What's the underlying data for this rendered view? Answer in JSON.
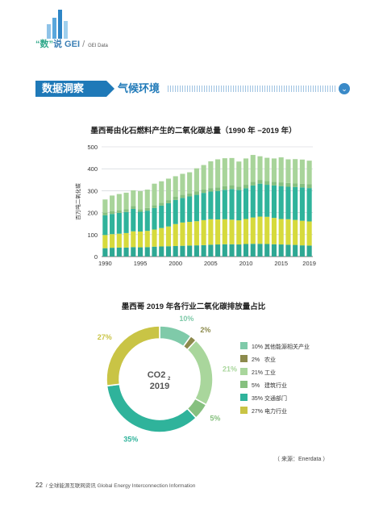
{
  "header": {
    "brand_open_quote": "“",
    "brand_char": "数",
    "brand_close_quote": "”",
    "brand_rest": "说 GEI",
    "brand_sep": "/",
    "brand_sub": "GEI Data"
  },
  "section": {
    "tag": "数据洞察",
    "title": "气候环境"
  },
  "bar_chart_title": "墨西哥由化石燃料产生的二氧化碳总量（1990 年 −2019 年）",
  "donut_chart_title": "墨西哥 2019 年各行业二氧化碳排放量占比",
  "source": "（ 来源：Enerdata ）",
  "footer": {
    "page": "22",
    "sep": "/",
    "text": "全球能源互联网资讯  Global Energy Interconnection Information"
  },
  "colors": {
    "brand_blue": "#1f79b8",
    "green_light": "#a8d49a",
    "teal": "#2fb39b",
    "yellow": "#d5d93a",
    "green_mid": "#86c07f",
    "olive": "#8c8a4c",
    "light_teal": "#7fcaa9",
    "yellow_green": "#c9c445"
  },
  "chart_data": [
    {
      "type": "bar",
      "stacked": true,
      "title": "墨西哥由化石燃料产生的二氧化碳总量（1990 年 −2019 年）",
      "ylabel": "百万吨二氧化碳",
      "xlabel": "",
      "ylim": [
        0,
        500
      ],
      "yticks": [
        "0",
        "100",
        "200",
        "300",
        "400",
        "500"
      ],
      "xtick_labels": [
        "1990",
        "1995",
        "2000",
        "2005",
        "2010",
        "2015",
        "2019"
      ],
      "categories": [
        1990,
        1991,
        1992,
        1993,
        1994,
        1995,
        1996,
        1997,
        1998,
        1999,
        2000,
        2001,
        2002,
        2003,
        2004,
        2005,
        2006,
        2007,
        2008,
        2009,
        2010,
        2011,
        2012,
        2013,
        2014,
        2015,
        2016,
        2017,
        2018,
        2019
      ],
      "grid": true,
      "series": [
        {
          "color": "#2ea894",
          "values": [
            38,
            40,
            41,
            41,
            43,
            42,
            43,
            45,
            46,
            47,
            48,
            49,
            50,
            51,
            52,
            54,
            55,
            56,
            56,
            55,
            57,
            58,
            58,
            57,
            56,
            55,
            54,
            53,
            51,
            50
          ]
        },
        {
          "color": "#d6da3c",
          "values": [
            60,
            62,
            63,
            66,
            72,
            72,
            74,
            78,
            84,
            90,
            100,
            106,
            108,
            110,
            114,
            116,
            114,
            114,
            112,
            110,
            114,
            120,
            124,
            124,
            120,
            116,
            116,
            114,
            112,
            110
          ]
        },
        {
          "color": "#2fb39b",
          "values": [
            90,
            92,
            95,
            96,
            102,
            90,
            92,
            98,
            102,
            106,
            110,
            112,
            116,
            120,
            124,
            126,
            130,
            134,
            140,
            138,
            140,
            146,
            150,
            146,
            148,
            150,
            148,
            150,
            152,
            152
          ]
        },
        {
          "color": "#86c07f",
          "values": [
            12,
            12,
            12,
            12,
            13,
            12,
            12,
            13,
            13,
            14,
            14,
            14,
            14,
            15,
            15,
            16,
            16,
            16,
            17,
            16,
            16,
            17,
            17,
            17,
            17,
            17,
            17,
            17,
            17,
            17
          ]
        },
        {
          "color": "#a8d49a",
          "values": [
            60,
            72,
            74,
            76,
            72,
            82,
            84,
            98,
            98,
            98,
            94,
            96,
            96,
            106,
            112,
            122,
            128,
            128,
            124,
            114,
            120,
            122,
            108,
            106,
            106,
            114,
            108,
            110,
            110,
            108
          ]
        }
      ]
    },
    {
      "type": "pie",
      "donut": true,
      "title": "墨西哥 2019 年各行业二氧化碳排放量占比",
      "center_label": "CO2",
      "center_sub": "2",
      "center_year": "2019",
      "slices": [
        {
          "label": "其他能源相关产业",
          "value": 10,
          "pct": "10%",
          "color": "#7fcaa9"
        },
        {
          "label": "农业",
          "value": 2,
          "pct": "2%",
          "color": "#8c8a4c"
        },
        {
          "label": "工业",
          "value": 21,
          "pct": "21%",
          "color": "#a9d69c"
        },
        {
          "label": "建筑行业",
          "value": 5,
          "pct": "5%",
          "color": "#86c07f"
        },
        {
          "label": "交通部门",
          "value": 35,
          "pct": "35%",
          "color": "#2fb39b"
        },
        {
          "label": "电力行业",
          "value": 27,
          "pct": "27%",
          "color": "#c9c445"
        }
      ],
      "legend_placement": "right"
    }
  ]
}
